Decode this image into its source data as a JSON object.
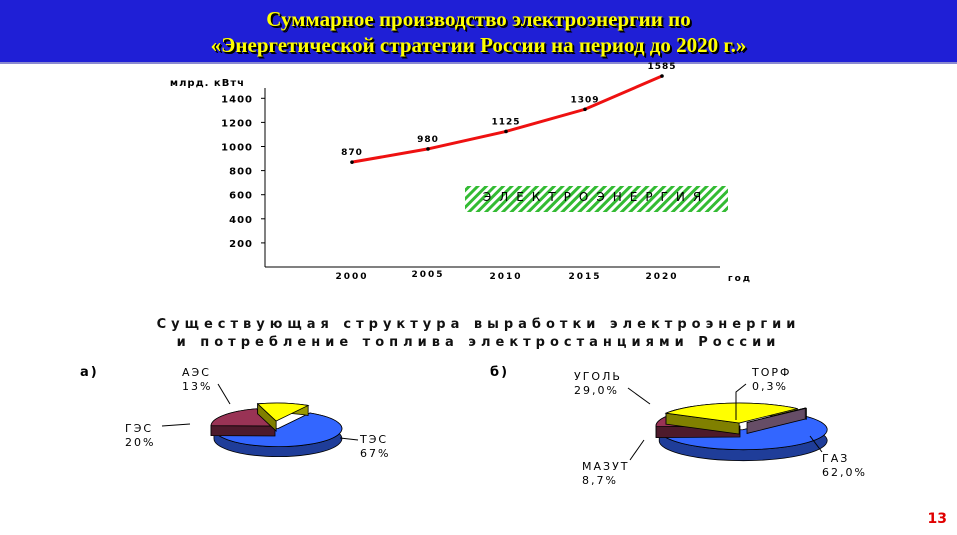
{
  "header": {
    "line1": "Суммарное производство электроэнергии по",
    "line2": "«Энергетической стратегии России на период до 2020 г.»"
  },
  "chart_data": [
    {
      "type": "line",
      "x": [
        "2000",
        "2005",
        "2010",
        "2015",
        "2020"
      ],
      "series": [
        {
          "values": [
            870,
            980,
            1125,
            1309,
            1585
          ]
        }
      ],
      "data_labels": [
        "870",
        "980",
        "1125",
        "1309",
        "1585"
      ],
      "yticks": [
        200,
        400,
        600,
        800,
        1000,
        1200,
        1400
      ],
      "ylabel": "млрд. кВтч",
      "xlabel": "год",
      "ylim": [
        0,
        1500
      ],
      "annotation": "ЭЛЕКТРОЭНЕРГИЯ",
      "line_color": "#ee1111",
      "grid": false
    },
    {
      "type": "pie",
      "panel_label": "а)",
      "slices": [
        {
          "label": "ТЭС",
          "pct_text": "67%",
          "value": 67,
          "color": "#3366ff"
        },
        {
          "label": "ГЭС",
          "pct_text": "20%",
          "value": 20,
          "color": "#993355"
        },
        {
          "label": "АЭС",
          "pct_text": "13%",
          "value": 13,
          "color": "#ffff00"
        }
      ]
    },
    {
      "type": "pie",
      "panel_label": "б)",
      "slices": [
        {
          "label": "ГАЗ",
          "pct_text": "62,0%",
          "value": 62.0,
          "color": "#3366ff"
        },
        {
          "label": "МАЗУТ",
          "pct_text": "8,7%",
          "value": 8.7,
          "color": "#993355"
        },
        {
          "label": "УГОЛЬ",
          "pct_text": "29,0%",
          "value": 29.0,
          "color": "#ffff00"
        },
        {
          "label": "ТОРФ",
          "pct_text": "0,3%",
          "value": 0.3,
          "color": "#cc99cc"
        }
      ]
    }
  ],
  "subtitle": {
    "line1": "Существующая структура выработки электроэнергии",
    "line2": "и потребление топлива электростанциями России"
  },
  "page_number": "13"
}
